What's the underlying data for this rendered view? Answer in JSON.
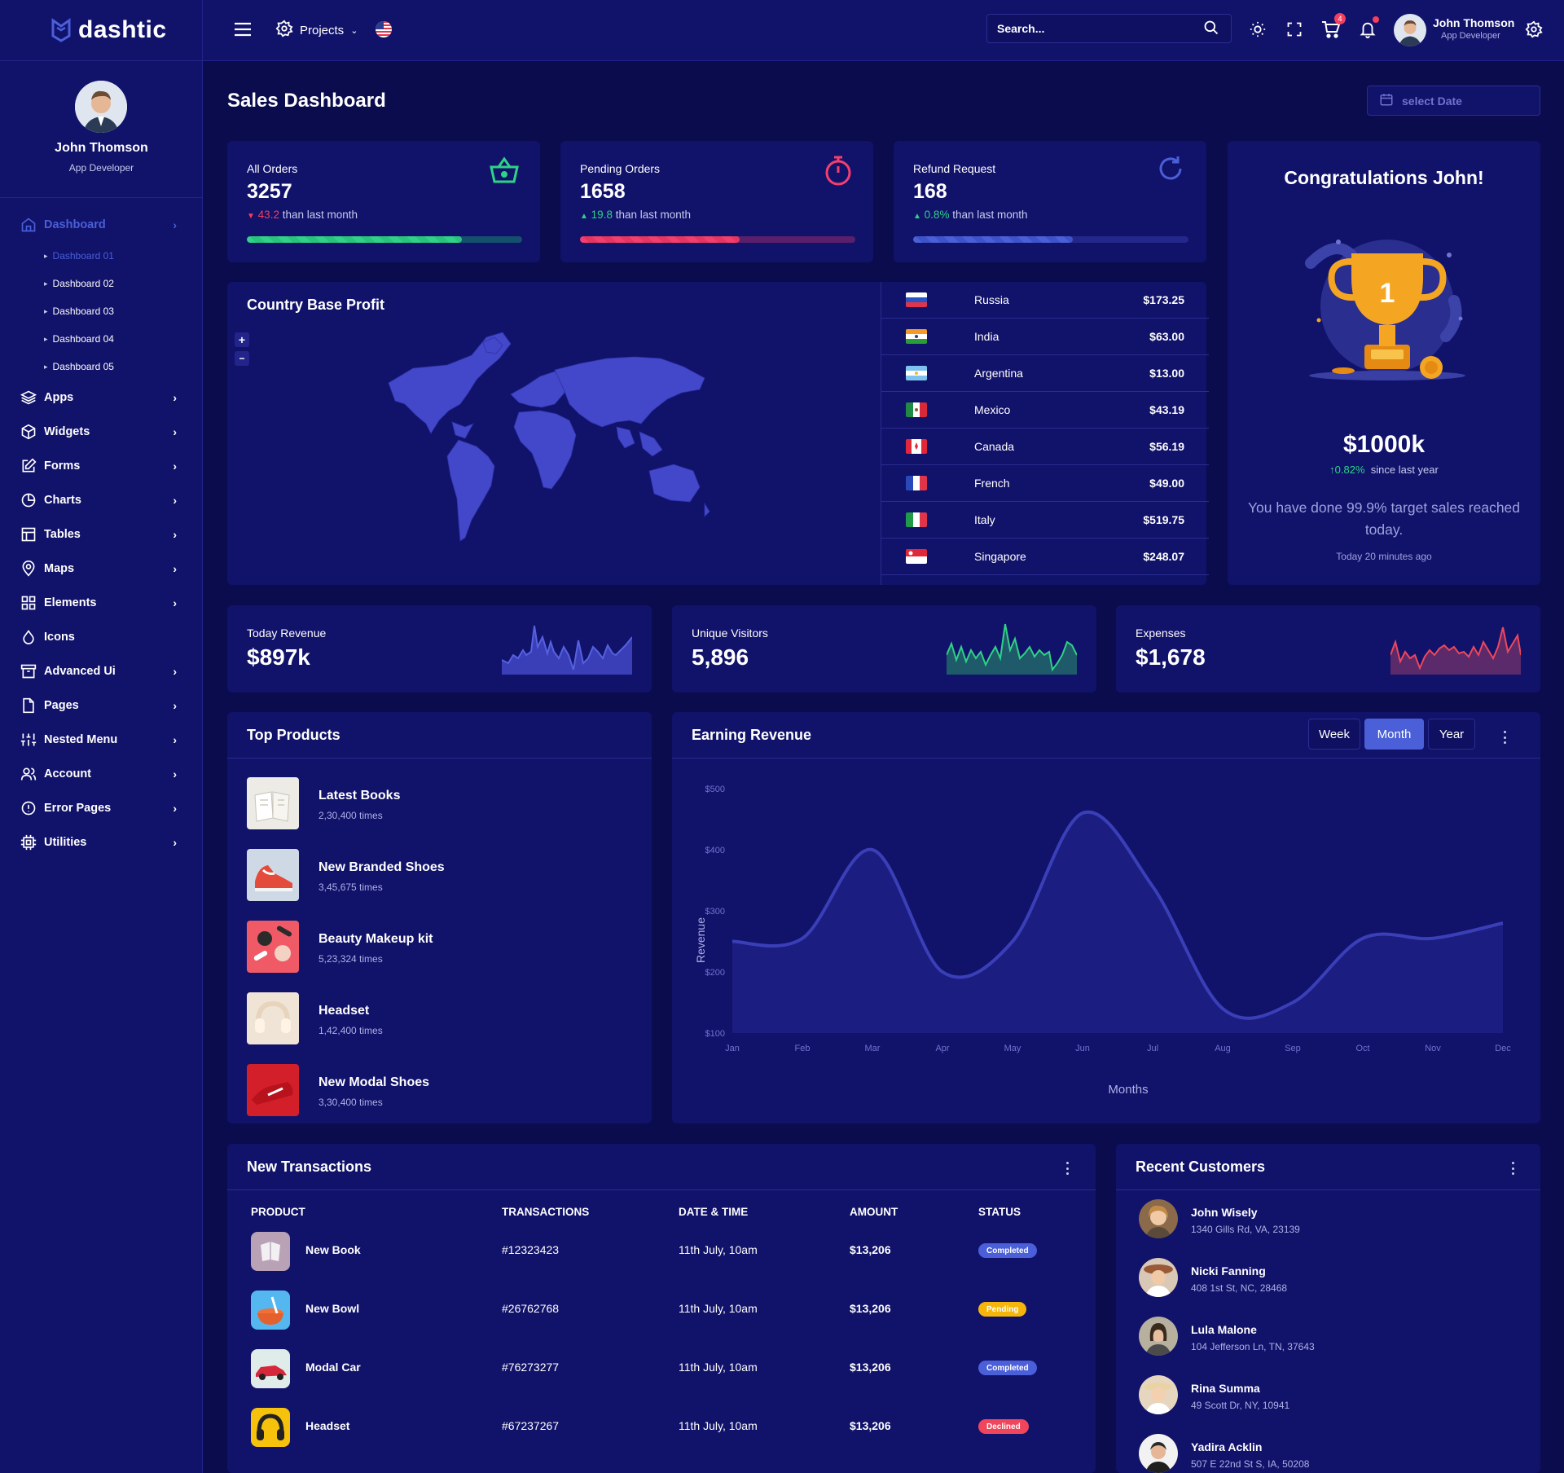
{
  "app": {
    "brand": "dashtic"
  },
  "profile": {
    "name": "John Thomson",
    "role": "App Developer"
  },
  "header": {
    "projects_label": "Projects",
    "search_placeholder": "Search...",
    "cart_count": "4",
    "user_name": "John Thomson",
    "user_role": "App Developer"
  },
  "sidebar": {
    "items": [
      {
        "label": "Dashboard",
        "icon": "home-icon"
      },
      {
        "label": "Apps",
        "icon": "layers-icon"
      },
      {
        "label": "Widgets",
        "icon": "box-icon"
      },
      {
        "label": "Forms",
        "icon": "edit-icon"
      },
      {
        "label": "Charts",
        "icon": "pie-icon"
      },
      {
        "label": "Tables",
        "icon": "table-icon"
      },
      {
        "label": "Maps",
        "icon": "map-pin-icon"
      },
      {
        "label": "Elements",
        "icon": "grid-icon"
      },
      {
        "label": "Icons",
        "icon": "droplet-icon"
      },
      {
        "label": "Advanced Ui",
        "icon": "archive-icon"
      },
      {
        "label": "Pages",
        "icon": "file-icon"
      },
      {
        "label": "Nested Menu",
        "icon": "sliders-icon"
      },
      {
        "label": "Account",
        "icon": "users-icon"
      },
      {
        "label": "Error Pages",
        "icon": "alert-icon"
      },
      {
        "label": "Utilities",
        "icon": "cpu-icon"
      }
    ],
    "dashboard_sub": [
      "Dashboard 01",
      "Dashboard 02",
      "Dashboard 03",
      "Dashboard 04",
      "Dashboard 05"
    ]
  },
  "page": {
    "title": "Sales Dashboard",
    "date_placeholder": "select Date"
  },
  "stats": [
    {
      "label": "All Orders",
      "value": "3257",
      "delta": "43.2",
      "delta_text": " than last month",
      "trend": "down",
      "progress": 0.78,
      "color": "#2fd286",
      "icon": "basket-icon"
    },
    {
      "label": "Pending Orders",
      "value": "1658",
      "delta": "19.8",
      "delta_text": " than last month",
      "trend": "up",
      "progress": 0.58,
      "color": "#f43f6e",
      "icon": "stopwatch-icon"
    },
    {
      "label": "Refund Request",
      "value": "168",
      "delta": "0.8%",
      "delta_text": " than last month",
      "trend": "up",
      "progress": 0.58,
      "color": "#4a5fd8",
      "icon": "refresh-icon"
    }
  ],
  "congrats": {
    "title": "Congratulations John!",
    "amount": "$1000k",
    "growth": "0.82%",
    "growth_text": "since last year",
    "message": "You have done 99.9% target sales reached today.",
    "time": "Today 20 minutes ago",
    "trophy_number": "1"
  },
  "country_profit": {
    "title": "Country Base Profit",
    "zoom_in": "+",
    "zoom_out": "−",
    "rows": [
      {
        "country": "Russia",
        "value": "$173.25"
      },
      {
        "country": "India",
        "value": "$63.00"
      },
      {
        "country": "Argentina",
        "value": "$13.00"
      },
      {
        "country": "Mexico",
        "value": "$43.19"
      },
      {
        "country": "Canada",
        "value": "$56.19"
      },
      {
        "country": "French",
        "value": "$49.00"
      },
      {
        "country": "Italy",
        "value": "$519.75"
      },
      {
        "country": "Singapore",
        "value": "$248.07"
      }
    ]
  },
  "mini": [
    {
      "label": "Today Revenue",
      "value": "$897k",
      "color": "#5561e0"
    },
    {
      "label": "Unique Visitors",
      "value": "5,896",
      "color": "#2fd286"
    },
    {
      "label": "Expenses",
      "value": "$1,678",
      "color": "#f0465c"
    }
  ],
  "top_products": {
    "title": "Top Products",
    "items": [
      {
        "name": "Latest Books",
        "times": "2,30,400 times"
      },
      {
        "name": "New Branded Shoes",
        "times": "3,45,675 times"
      },
      {
        "name": "Beauty Makeup kit",
        "times": "5,23,324 times"
      },
      {
        "name": "Headset",
        "times": "1,42,400 times"
      },
      {
        "name": "New Modal Shoes",
        "times": "3,30,400 times"
      }
    ]
  },
  "earning": {
    "title": "Earning Revenue",
    "tabs": [
      "Week",
      "Month",
      "Year"
    ],
    "active_tab": "Month"
  },
  "chart_data": {
    "type": "area",
    "title": "Earning Revenue",
    "xlabel": "Months",
    "ylabel": "Revenue",
    "categories": [
      "Jan",
      "Feb",
      "Mar",
      "Apr",
      "May",
      "Jun",
      "Jul",
      "Aug",
      "Sep",
      "Oct",
      "Nov",
      "Dec"
    ],
    "y_ticks": [
      "$100",
      "$200",
      "$300",
      "$400",
      "$500"
    ],
    "ylim": [
      100,
      500
    ],
    "series": [
      {
        "values": [
          250,
          255,
          400,
          200,
          250,
          460,
          340,
          140,
          150,
          255,
          255,
          280
        ]
      }
    ],
    "grid": false,
    "color": "#3a3fb8"
  },
  "transactions": {
    "title": "New Transactions",
    "columns": [
      "PRODUCT",
      "TRANSACTIONS",
      "DATE & TIME",
      "AMOUNT",
      "STATUS"
    ],
    "rows": [
      {
        "product": "New Book",
        "id": "#12323423",
        "date": "11th July, 10am",
        "amount": "$13,206",
        "status": "Completed",
        "status_color": "#4a5fd8"
      },
      {
        "product": "New Bowl",
        "id": "#26762768",
        "date": "11th July, 10am",
        "amount": "$13,206",
        "status": "Pending",
        "status_color": "#f5b50a"
      },
      {
        "product": "Modal Car",
        "id": "#76273277",
        "date": "11th July, 10am",
        "amount": "$13,206",
        "status": "Completed",
        "status_color": "#4a5fd8"
      },
      {
        "product": "Headset",
        "id": "#67237267",
        "date": "11th July, 10am",
        "amount": "$13,206",
        "status": "Declined",
        "status_color": "#f0465c"
      }
    ]
  },
  "customers": {
    "title": "Recent Customers",
    "items": [
      {
        "name": "John Wisely",
        "address": "1340 Gills Rd, VA, 23139"
      },
      {
        "name": "Nicki Fanning",
        "address": "408 1st St, NC, 28468"
      },
      {
        "name": "Lula Malone",
        "address": "104 Jefferson Ln, TN, 37643"
      },
      {
        "name": "Rina Summa",
        "address": "49 Scott Dr, NY, 10941"
      },
      {
        "name": "Yadira Acklin",
        "address": "507 E 22nd St S, IA, 50208"
      }
    ]
  }
}
